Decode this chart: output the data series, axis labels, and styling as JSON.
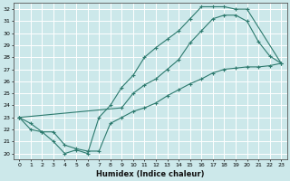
{
  "color": "#2d7a6e",
  "bg_color": "#cce8ea",
  "xlabel": "Humidex (Indice chaleur)",
  "ylabel_ticks": [
    20,
    21,
    22,
    23,
    24,
    25,
    26,
    27,
    28,
    29,
    30,
    31,
    32
  ],
  "xlim": [
    -0.5,
    23.5
  ],
  "ylim": [
    19.5,
    32.5
  ],
  "line_top_x": [
    0,
    1,
    2,
    3,
    4,
    5,
    6,
    7,
    8,
    9,
    10,
    11,
    12,
    13,
    14,
    15,
    16,
    17,
    18,
    19,
    20,
    23
  ],
  "line_top_y": [
    23.0,
    22.5,
    21.8,
    21.0,
    20.0,
    20.3,
    20.0,
    23.0,
    24.0,
    25.5,
    26.5,
    28.0,
    28.8,
    29.5,
    30.2,
    31.2,
    32.2,
    32.2,
    32.2,
    32.0,
    32.0,
    27.5
  ],
  "line_mid_x": [
    0,
    9,
    10,
    11,
    12,
    13,
    14,
    15,
    16,
    17,
    18,
    19,
    20,
    21,
    22,
    23
  ],
  "line_mid_y": [
    23.0,
    23.8,
    25.0,
    25.7,
    26.2,
    27.0,
    27.8,
    29.2,
    30.2,
    31.2,
    31.5,
    31.5,
    31.0,
    29.3,
    28.1,
    27.5
  ],
  "line_bot_x": [
    0,
    1,
    2,
    3,
    4,
    5,
    6,
    7,
    8,
    9,
    10,
    11,
    12,
    13,
    14,
    15,
    16,
    17,
    18,
    19,
    20,
    21,
    22,
    23
  ],
  "line_bot_y": [
    23.0,
    22.0,
    21.8,
    21.8,
    20.7,
    20.4,
    20.2,
    20.2,
    22.5,
    23.0,
    23.5,
    23.8,
    24.2,
    24.8,
    25.3,
    25.8,
    26.2,
    26.7,
    27.0,
    27.1,
    27.2,
    27.2,
    27.3,
    27.5
  ]
}
